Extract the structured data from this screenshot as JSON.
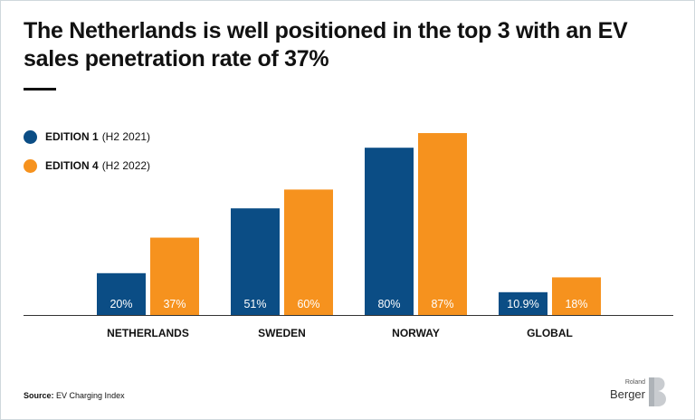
{
  "title": "The Netherlands is well positioned in the top 3 with an EV sales penetration rate of 37%",
  "legend": [
    {
      "strong": "EDITION 1",
      "rest": "(H2 2021)",
      "color": "#0b4d85"
    },
    {
      "strong": "EDITION 4",
      "rest": "(H2 2022)",
      "color": "#f6921e"
    }
  ],
  "chart_data": {
    "type": "bar",
    "categories": [
      "NETHERLANDS",
      "SWEDEN",
      "NORWAY",
      "GLOBAL"
    ],
    "series": [
      {
        "name": "EDITION 1 (H2 2021)",
        "color": "#0b4d85",
        "values": [
          20,
          51,
          80,
          10.9
        ],
        "labels": [
          "20%",
          "51%",
          "80%",
          "10.9%"
        ]
      },
      {
        "name": "EDITION 4 (H2 2022)",
        "color": "#f6921e",
        "values": [
          37,
          60,
          87,
          18
        ],
        "labels": [
          "37%",
          "60%",
          "87%",
          "18%"
        ]
      }
    ],
    "ylim": [
      0,
      100
    ],
    "grid": false,
    "legend_position": "top-left"
  },
  "source": {
    "label": "Source:",
    "text": "EV Charging Index"
  },
  "logo": {
    "line1": "Roland",
    "line2": "Berger"
  }
}
